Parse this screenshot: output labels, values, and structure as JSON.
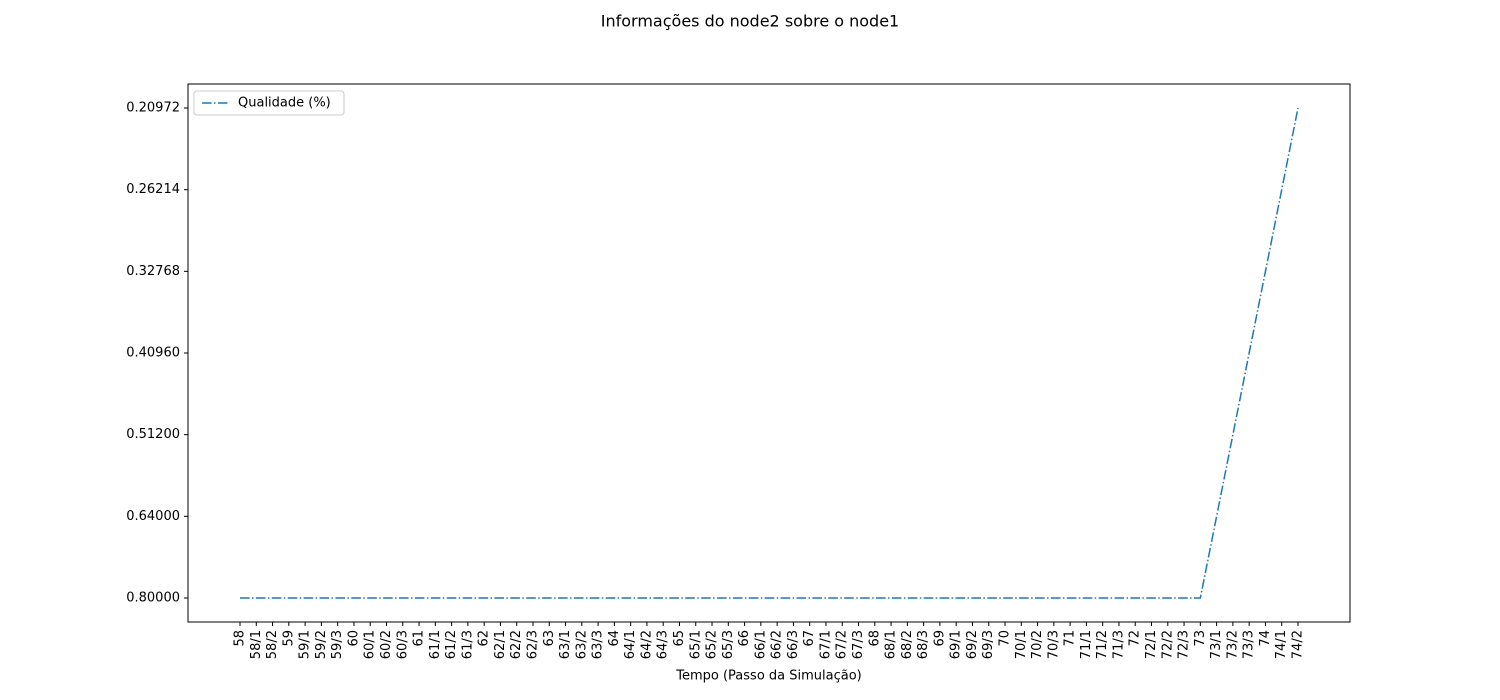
{
  "chart_data": {
    "type": "line",
    "title": "Informações do node2 sobre o node1",
    "x_label": "Tempo (Passo da Simulação)",
    "categories": [
      "58",
      "58/1",
      "58/2",
      "59",
      "59/1",
      "59/2",
      "59/3",
      "60",
      "60/1",
      "60/2",
      "60/3",
      "61",
      "61/1",
      "61/2",
      "61/3",
      "62",
      "62/1",
      "62/2",
      "62/3",
      "63",
      "63/1",
      "63/2",
      "63/3",
      "64",
      "64/1",
      "64/2",
      "64/3",
      "65",
      "65/1",
      "65/2",
      "65/3",
      "66",
      "66/1",
      "66/2",
      "66/3",
      "67",
      "67/1",
      "67/2",
      "67/3",
      "68",
      "68/1",
      "68/2",
      "68/3",
      "69",
      "69/1",
      "69/2",
      "69/3",
      "70",
      "70/1",
      "70/2",
      "70/3",
      "71",
      "71/1",
      "71/2",
      "71/3",
      "72",
      "72/1",
      "72/2",
      "72/3",
      "73",
      "73/1",
      "73/2",
      "73/3",
      "74",
      "74/1",
      "74/2"
    ],
    "series": [
      {
        "name": "Qualidade (%)",
        "color": "#1f77b4",
        "line_style": "dashdot",
        "values": [
          0.8,
          0.8,
          0.8,
          0.8,
          0.8,
          0.8,
          0.8,
          0.8,
          0.8,
          0.8,
          0.8,
          0.8,
          0.8,
          0.8,
          0.8,
          0.8,
          0.8,
          0.8,
          0.8,
          0.8,
          0.8,
          0.8,
          0.8,
          0.8,
          0.8,
          0.8,
          0.8,
          0.8,
          0.8,
          0.8,
          0.8,
          0.8,
          0.8,
          0.8,
          0.8,
          0.8,
          0.8,
          0.8,
          0.8,
          0.8,
          0.8,
          0.8,
          0.8,
          0.8,
          0.8,
          0.8,
          0.8,
          0.8,
          0.8,
          0.8,
          0.8,
          0.8,
          0.8,
          0.8,
          0.8,
          0.8,
          0.8,
          0.8,
          0.8,
          0.8,
          0.64,
          0.512,
          0.4096,
          0.32768,
          0.26214,
          0.20972
        ]
      }
    ],
    "y_scale": "categorical",
    "yticks": [
      {
        "value": 0.8,
        "label": "0.80000"
      },
      {
        "value": 0.64,
        "label": "0.64000"
      },
      {
        "value": 0.512,
        "label": "0.51200"
      },
      {
        "value": 0.4096,
        "label": "0.40960"
      },
      {
        "value": 0.32768,
        "label": "0.32768"
      },
      {
        "value": 0.26214,
        "label": "0.26214"
      },
      {
        "value": 0.20972,
        "label": "0.20972"
      }
    ],
    "grid": false,
    "legend": "upper-left"
  }
}
